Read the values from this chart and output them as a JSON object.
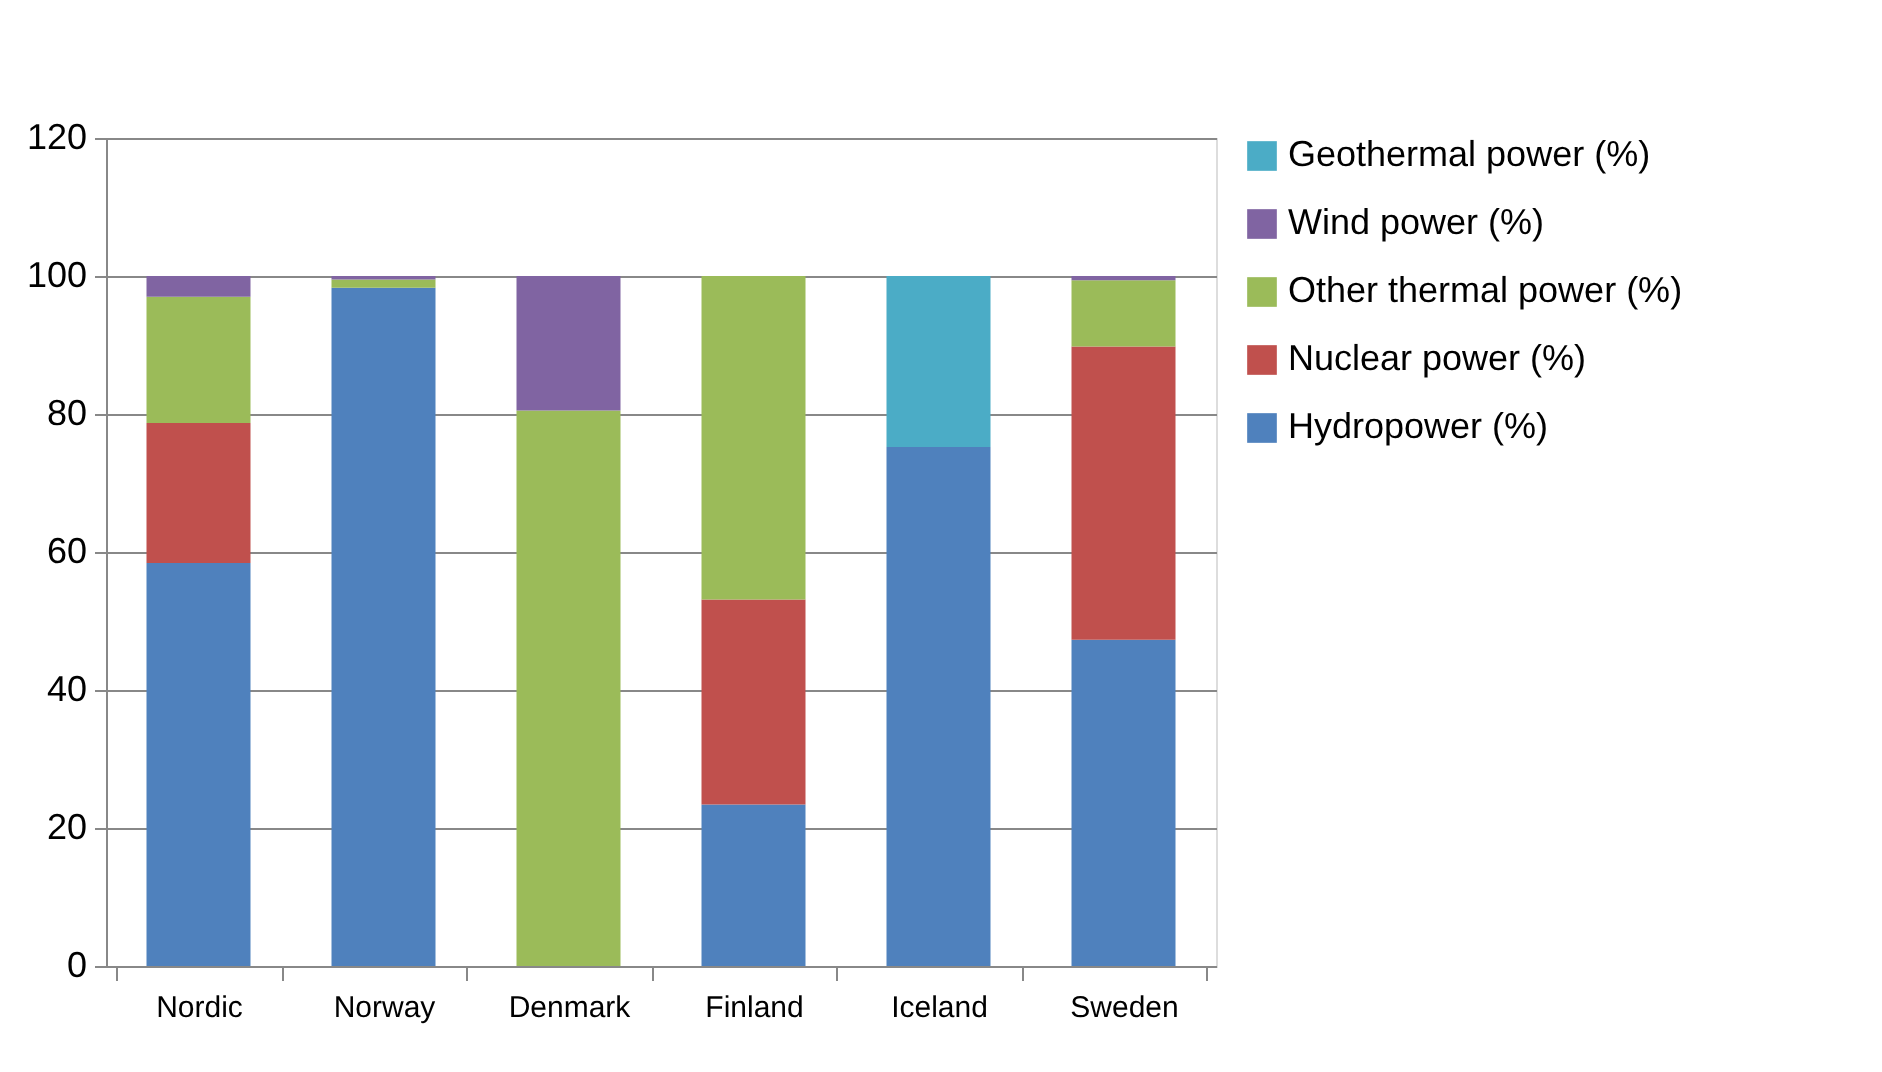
{
  "chart_data": {
    "type": "bar",
    "stacked": true,
    "categories": [
      "Nordic",
      "Norway",
      "Denmark",
      "Finland",
      "Iceland",
      "Sweden"
    ],
    "series": [
      {
        "name": "Hydropower (%)",
        "color": "#4f81bd",
        "values": [
          58.4,
          98.3,
          0,
          23.4,
          75.2,
          47.3
        ]
      },
      {
        "name": "Nuclear power (%)",
        "color": "#c0504d",
        "values": [
          20.3,
          0,
          0,
          29.7,
          0,
          42.5
        ]
      },
      {
        "name": "Other thermal power (%)",
        "color": "#9bbb59",
        "values": [
          18.3,
          1.2,
          80.5,
          46.9,
          0,
          9.6
        ]
      },
      {
        "name": "Wind power (%)",
        "color": "#8064a2",
        "values": [
          3.0,
          0.5,
          19.5,
          0,
          0,
          0.6
        ]
      },
      {
        "name": "Geothermal power (%)",
        "color": "#4bacc6",
        "values": [
          0,
          0,
          0,
          0,
          24.8,
          0
        ]
      }
    ],
    "ylim": [
      0,
      120
    ],
    "yticks": [
      0,
      20,
      40,
      60,
      80,
      100,
      120
    ],
    "grid": "y",
    "legend": "right"
  }
}
